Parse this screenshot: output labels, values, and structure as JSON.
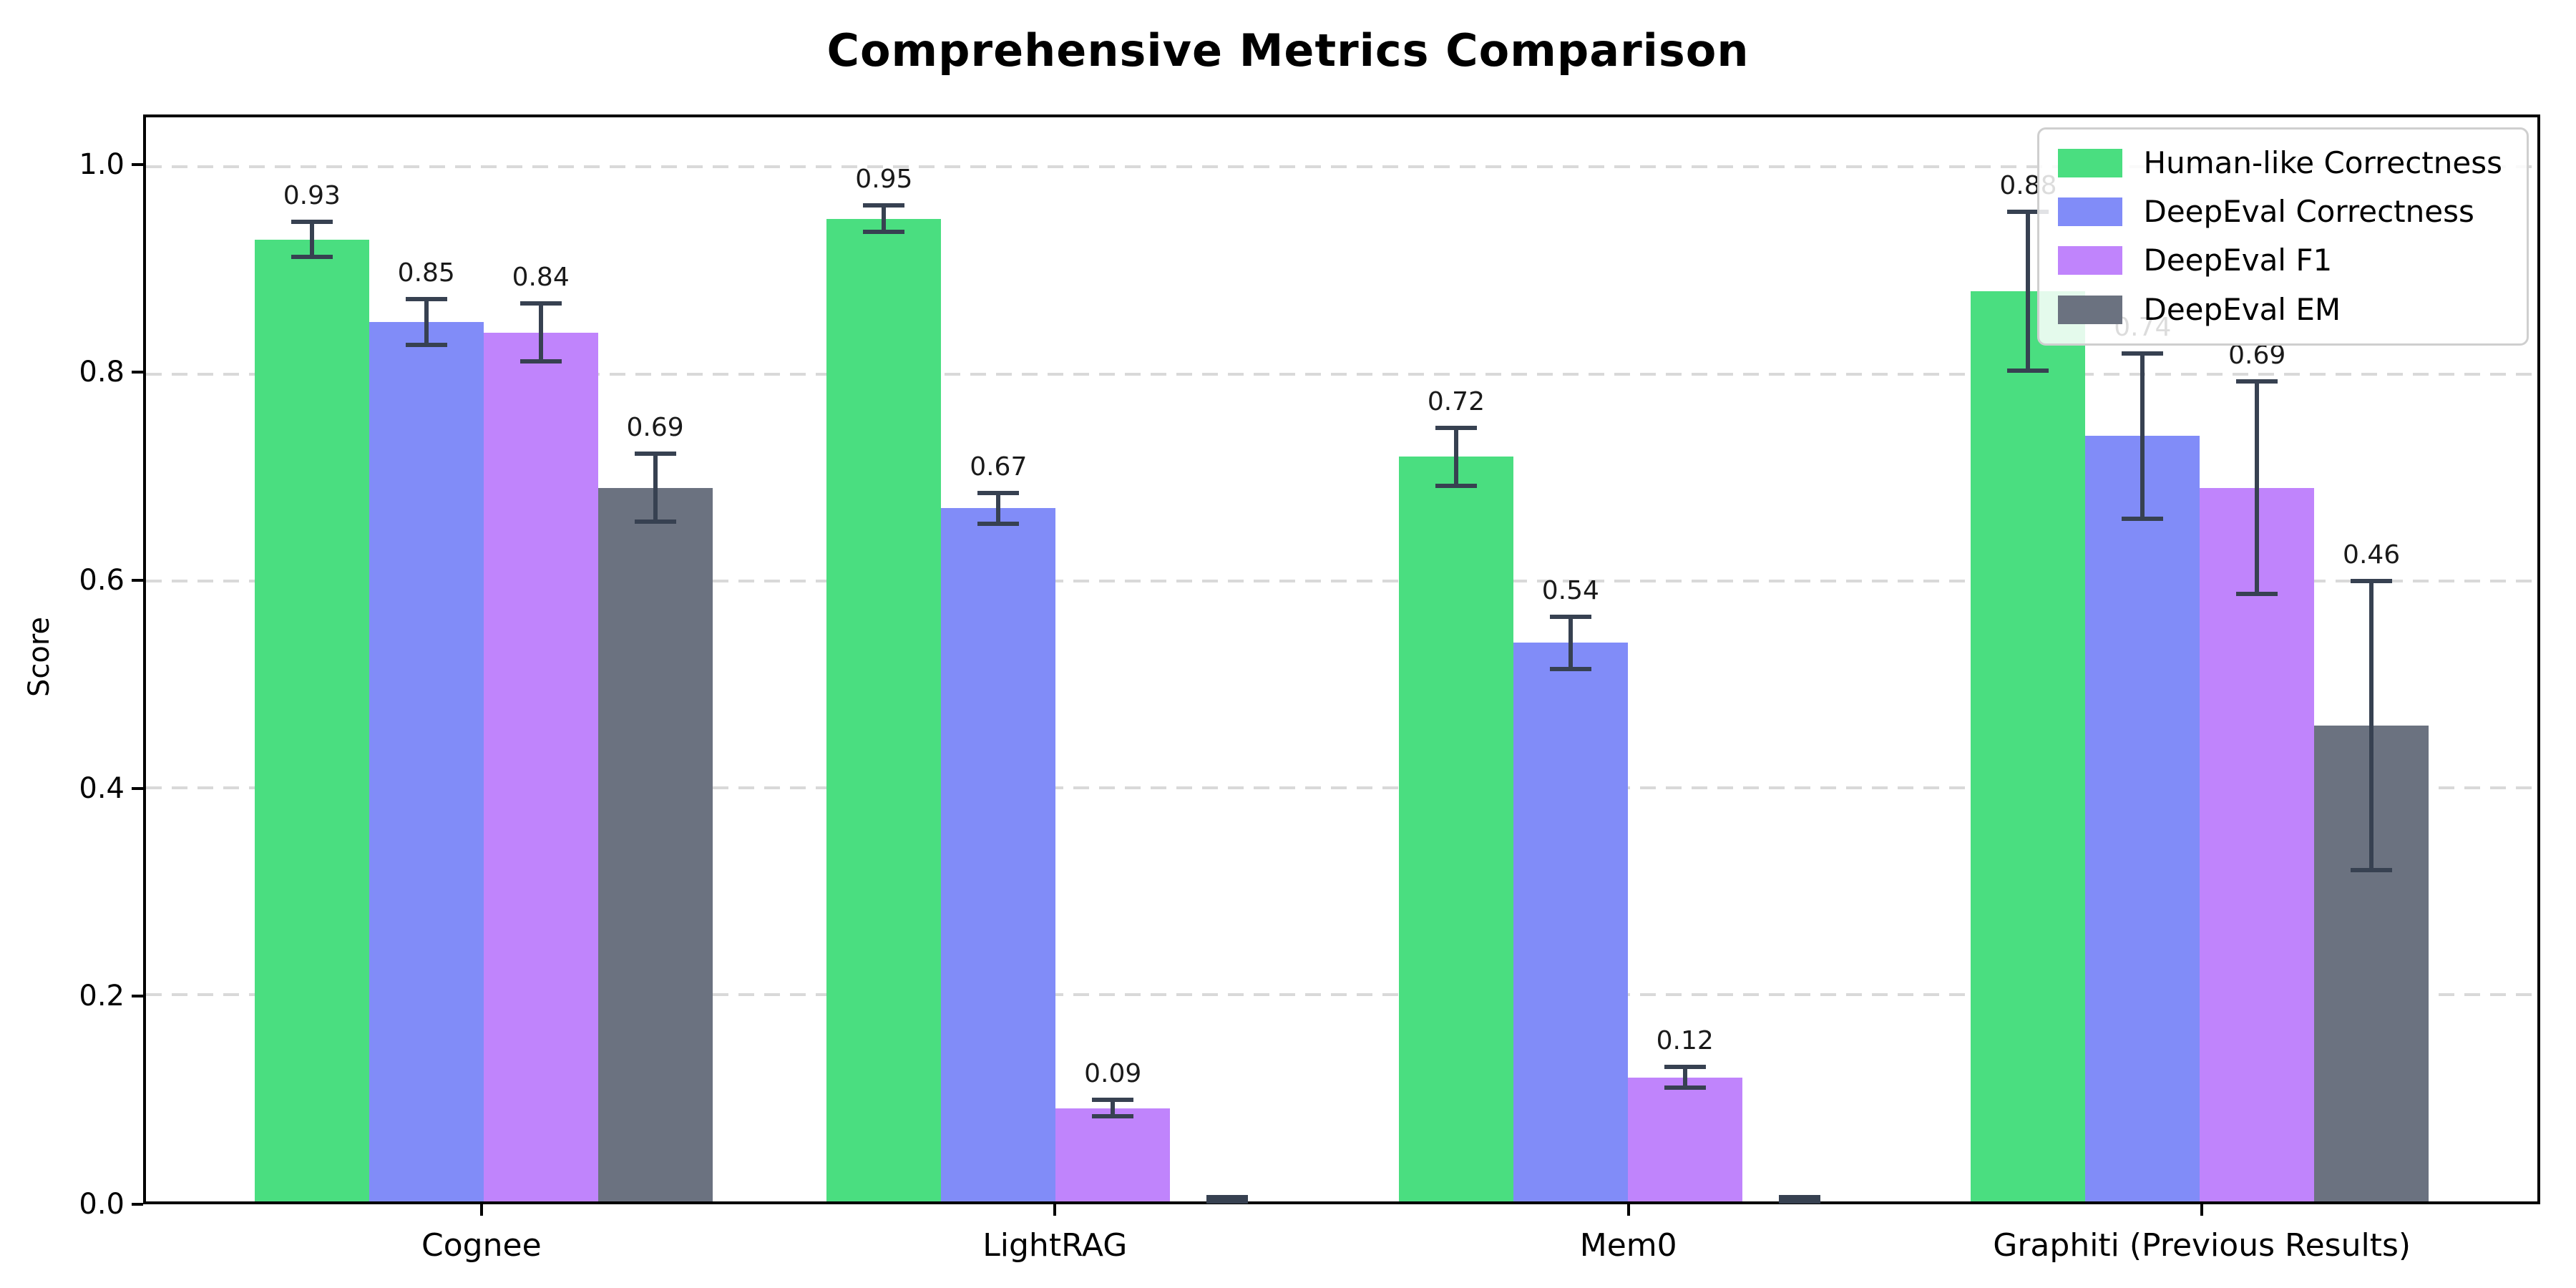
{
  "title": "Comprehensive Metrics Comparison",
  "chart_data": {
    "type": "bar",
    "title": "Comprehensive Metrics Comparison",
    "xlabel": "",
    "ylabel": "Score",
    "ylim": [
      0,
      1.05
    ],
    "grid": "horizontal-dashed",
    "legend_position": "upper-right",
    "categories": [
      "Cognee",
      "LightRAG",
      "Mem0",
      "Graphiti (Previous Results)"
    ],
    "yticks": [
      {
        "value": 0.0,
        "label": "0.0"
      },
      {
        "value": 0.2,
        "label": "0.2"
      },
      {
        "value": 0.4,
        "label": "0.4"
      },
      {
        "value": 0.6,
        "label": "0.6"
      },
      {
        "value": 0.8,
        "label": "0.8"
      },
      {
        "value": 1.0,
        "label": "1.0"
      }
    ],
    "series": [
      {
        "name": "Human-like Correctness",
        "color": "#4ade80",
        "values": [
          0.93,
          0.95,
          0.72,
          0.88
        ],
        "errors": [
          0.017,
          0.013,
          0.028,
          0.077
        ],
        "labels": [
          "0.93",
          "0.95",
          "0.72",
          "0.88"
        ]
      },
      {
        "name": "DeepEval Correctness",
        "color": "#818cf8",
        "values": [
          0.85,
          0.67,
          0.54,
          0.74
        ],
        "errors": [
          0.022,
          0.015,
          0.025,
          0.08
        ],
        "labels": [
          "0.85",
          "0.67",
          "0.54",
          "0.74"
        ]
      },
      {
        "name": "DeepEval F1",
        "color": "#c084fc",
        "values": [
          0.84,
          0.09,
          0.12,
          0.69
        ],
        "errors": [
          0.028,
          0.008,
          0.01,
          0.103
        ],
        "labels": [
          "0.84",
          "0.09",
          "0.12",
          "0.69"
        ]
      },
      {
        "name": "DeepEval EM",
        "color": "#6b7280",
        "values": [
          0.69,
          0.0,
          0.0,
          0.46
        ],
        "errors": [
          0.033,
          0.004,
          0.004,
          0.14
        ],
        "labels": [
          "0.69",
          "",
          "",
          "0.46"
        ]
      }
    ],
    "error_bar_color": "#374151"
  }
}
